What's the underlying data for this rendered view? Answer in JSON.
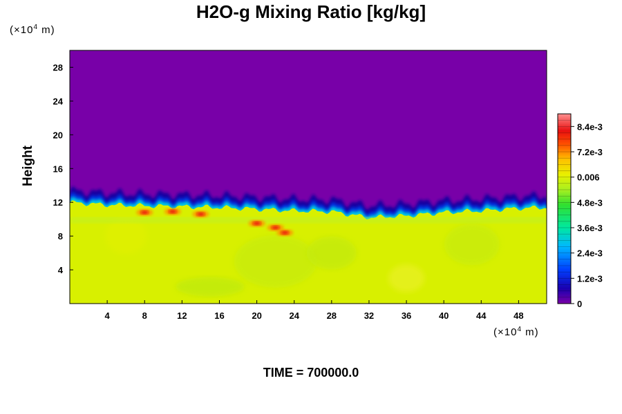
{
  "chart_data": {
    "type": "heatmap",
    "title": "H2O-g Mixing Ratio [kg/kg]",
    "ylabel": "Height",
    "xlabel": "",
    "x_unit": "(×10⁴ m)",
    "y_unit": "(×10⁴ m)",
    "x_unit_base": "(×10",
    "x_unit_exp": "4",
    "x_unit_tail": " m)",
    "y_unit_base": "(×10",
    "y_unit_exp": "4",
    "y_unit_tail": " m)",
    "xlim": [
      0,
      51
    ],
    "ylim": [
      0,
      30
    ],
    "x_ticks": [
      4,
      8,
      12,
      16,
      20,
      24,
      28,
      32,
      36,
      40,
      44,
      48
    ],
    "x_tick_labels": [
      "4",
      "8",
      "12",
      "16",
      "20",
      "24",
      "28",
      "32",
      "36",
      "40",
      "44",
      "48"
    ],
    "y_ticks": [
      4,
      8,
      12,
      16,
      20,
      24,
      28
    ],
    "y_tick_labels": [
      "4",
      "8",
      "12",
      "16",
      "20",
      "24",
      "28"
    ],
    "colorbar": {
      "range": [
        0,
        0.009
      ],
      "ticks": [
        0,
        0.0012,
        0.0024,
        0.0036,
        0.0048,
        0.006,
        0.0072,
        0.0084
      ],
      "tick_labels": [
        "0",
        "1.2e-3",
        "2.4e-3",
        "3.6e-3",
        "4.8e-3",
        "0.006",
        "7.2e-3",
        "8.4e-3"
      ]
    },
    "regions": {
      "lower_layer_value": 0.0062,
      "upper_layer_value": 0.0,
      "interface_height_x": [
        0,
        4,
        8,
        12,
        16,
        20,
        24,
        28,
        32,
        36,
        40,
        44,
        48,
        51
      ],
      "interface_height_y": [
        12.0,
        11.7,
        11.6,
        11.5,
        11.4,
        11.2,
        11.0,
        10.9,
        10.2,
        10.4,
        10.8,
        11.0,
        11.3,
        11.4
      ],
      "moist_peak_locations_x": [
        8,
        11,
        14,
        20,
        22,
        23
      ],
      "moist_peak_locations_y": [
        10.8,
        10.9,
        10.6,
        9.5,
        9.0,
        8.4
      ],
      "moist_peak_value": 0.0078
    }
  },
  "footer": {
    "time_label": "TIME = 700000.0"
  }
}
